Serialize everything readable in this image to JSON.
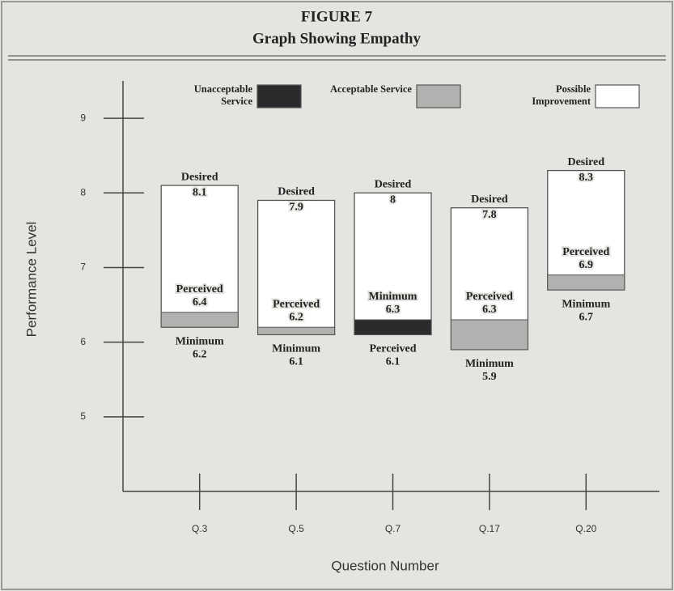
{
  "chart_data": {
    "type": "zone",
    "title": "FIGURE 7",
    "subtitle": "Graph Showing Empathy",
    "y_label": "Performance Level",
    "x_label": "Question Number",
    "categories": [
      "Q.3",
      "Q.5",
      "Q.7",
      "Q.17",
      "Q.20"
    ],
    "series": [
      {
        "name": "Desired",
        "values": [
          8.1,
          7.9,
          8.0,
          7.8,
          8.3
        ]
      },
      {
        "name": "Perceived",
        "values": [
          6.4,
          6.2,
          6.1,
          6.3,
          6.9
        ]
      },
      {
        "name": "Minimum",
        "values": [
          6.2,
          6.1,
          6.3,
          5.9,
          6.7
        ]
      }
    ],
    "legend": [
      {
        "label": "Unacceptable Service",
        "color": "#2b2b2e"
      },
      {
        "label": "Acceptable Service",
        "color": "#b3b1b0"
      },
      {
        "label": "Possible Improvement",
        "color": "#ffffff"
      }
    ],
    "ylim": [
      4,
      9.5
    ],
    "yticks": [
      5,
      6,
      7,
      8,
      9
    ]
  }
}
